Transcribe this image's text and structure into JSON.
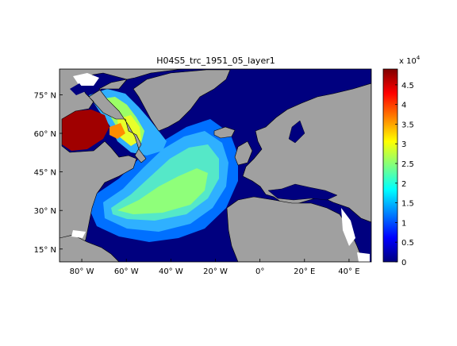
{
  "figure": {
    "title": "H04S5_trc_1951_05_layer1"
  },
  "map": {
    "lon_range": [
      -90,
      50
    ],
    "lat_range": [
      10,
      85
    ],
    "lat_ticks": [
      {
        "value": 15,
        "label": "15° N"
      },
      {
        "value": 30,
        "label": "30° N"
      },
      {
        "value": 45,
        "label": "45° N"
      },
      {
        "value": 60,
        "label": "60° N"
      },
      {
        "value": 75,
        "label": "75° N"
      }
    ],
    "lon_ticks": [
      {
        "value": -80,
        "label": "80° W"
      },
      {
        "value": -60,
        "label": "60° W"
      },
      {
        "value": -40,
        "label": "40° W"
      },
      {
        "value": -20,
        "label": "20° W"
      },
      {
        "value": 0,
        "label": "0°"
      },
      {
        "value": 20,
        "label": "20° E"
      },
      {
        "value": 40,
        "label": "40° E"
      }
    ],
    "colors": {
      "land": "#a0a0a0",
      "ocean_low": "#00007f",
      "no_data": "#ffffff",
      "coastline": "#000000"
    }
  },
  "colorbar": {
    "multiplier_label": "x 10",
    "multiplier_exp": "4",
    "range": [
      0,
      4.9
    ],
    "ticks": [
      "0",
      "0.5",
      "1",
      "1.5",
      "2",
      "2.5",
      "3",
      "3.5",
      "4",
      "4.5"
    ],
    "tick_values": [
      0,
      0.5,
      1,
      1.5,
      2,
      2.5,
      3,
      3.5,
      4,
      4.5
    ],
    "colormap": "jet"
  }
}
